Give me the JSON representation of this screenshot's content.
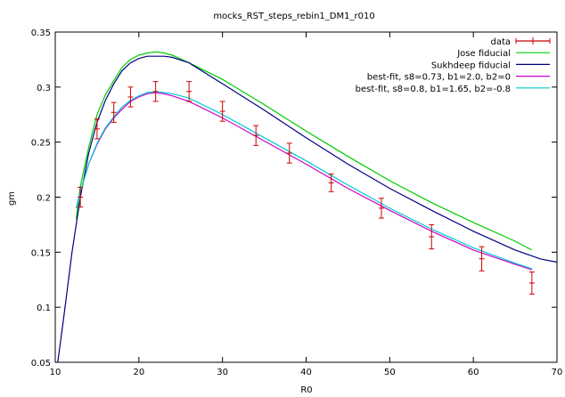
{
  "chart_data": {
    "type": "line",
    "title": "mocks_RST_steps_rebin1_DM1_r010",
    "xlabel": "R0",
    "ylabel": "gm",
    "xlim": [
      10,
      70
    ],
    "ylim": [
      0.05,
      0.35
    ],
    "xticks": [
      10,
      20,
      30,
      40,
      50,
      60,
      70
    ],
    "yticks": [
      0.05,
      0.1,
      0.15,
      0.2,
      0.25,
      0.3,
      0.35
    ],
    "ytick_labels": [
      "0.05",
      "0.1",
      "0.15",
      "0.2",
      "0.25",
      "0.3",
      "0.35"
    ],
    "grid": false,
    "legend_position": "top-right",
    "data_points": {
      "name": "data",
      "color": "#cc0000",
      "x": [
        13,
        15,
        17,
        19,
        22,
        26,
        30,
        34,
        38,
        43,
        49,
        55,
        61,
        67
      ],
      "y": [
        0.2,
        0.262,
        0.277,
        0.291,
        0.296,
        0.296,
        0.278,
        0.256,
        0.24,
        0.213,
        0.19,
        0.164,
        0.144,
        0.122
      ],
      "err": [
        0.009,
        0.009,
        0.009,
        0.009,
        0.009,
        0.009,
        0.009,
        0.009,
        0.009,
        0.008,
        0.009,
        0.011,
        0.011,
        0.01
      ]
    },
    "series": [
      {
        "name": "Jose fiducial",
        "color": "#00cc00",
        "x": [
          12.5,
          13,
          14,
          15,
          16,
          17,
          18,
          19,
          20,
          21,
          22,
          23,
          24,
          26,
          30,
          35,
          40,
          45,
          50,
          55,
          60,
          65,
          67
        ],
        "y": [
          0.18,
          0.21,
          0.245,
          0.275,
          0.293,
          0.306,
          0.318,
          0.325,
          0.329,
          0.331,
          0.332,
          0.331,
          0.329,
          0.322,
          0.307,
          0.284,
          0.26,
          0.237,
          0.215,
          0.195,
          0.177,
          0.16,
          0.152
        ]
      },
      {
        "name": "Sukhdeep fiducial",
        "color": "#000080",
        "x": [
          10.3,
          11,
          12,
          13,
          14,
          15,
          16,
          17,
          18,
          19,
          20,
          21,
          22,
          23,
          24,
          26,
          30,
          35,
          40,
          45,
          50,
          55,
          60,
          65,
          68,
          70
        ],
        "y": [
          0.05,
          0.09,
          0.15,
          0.2,
          0.24,
          0.268,
          0.288,
          0.303,
          0.315,
          0.322,
          0.326,
          0.328,
          0.328,
          0.328,
          0.327,
          0.322,
          0.303,
          0.279,
          0.254,
          0.23,
          0.208,
          0.188,
          0.169,
          0.152,
          0.144,
          0.141
        ]
      },
      {
        "name": "best-fit, s8=0.73, b1=2.0, b2=0",
        "color": "#cc00cc",
        "x": [
          12.5,
          13,
          14,
          15,
          16,
          17,
          18,
          19,
          20,
          21,
          22,
          23,
          24,
          26,
          30,
          35,
          40,
          45,
          50,
          55,
          60,
          65,
          67
        ],
        "y": [
          0.19,
          0.205,
          0.23,
          0.248,
          0.262,
          0.272,
          0.28,
          0.287,
          0.291,
          0.294,
          0.295,
          0.294,
          0.292,
          0.287,
          0.272,
          0.251,
          0.23,
          0.208,
          0.188,
          0.169,
          0.152,
          0.139,
          0.134
        ]
      },
      {
        "name": "best-fit, s8=0.8, b1=1.65, b2=-0.8",
        "color": "#00cccc",
        "x": [
          12.5,
          13,
          14,
          15,
          16,
          17,
          18,
          19,
          20,
          21,
          22,
          23,
          24,
          26,
          30,
          35,
          40,
          45,
          50,
          55,
          60,
          65,
          67
        ],
        "y": [
          0.19,
          0.205,
          0.23,
          0.249,
          0.263,
          0.273,
          0.282,
          0.288,
          0.292,
          0.295,
          0.296,
          0.295,
          0.294,
          0.29,
          0.275,
          0.254,
          0.233,
          0.211,
          0.19,
          0.171,
          0.154,
          0.14,
          0.135
        ]
      }
    ]
  }
}
